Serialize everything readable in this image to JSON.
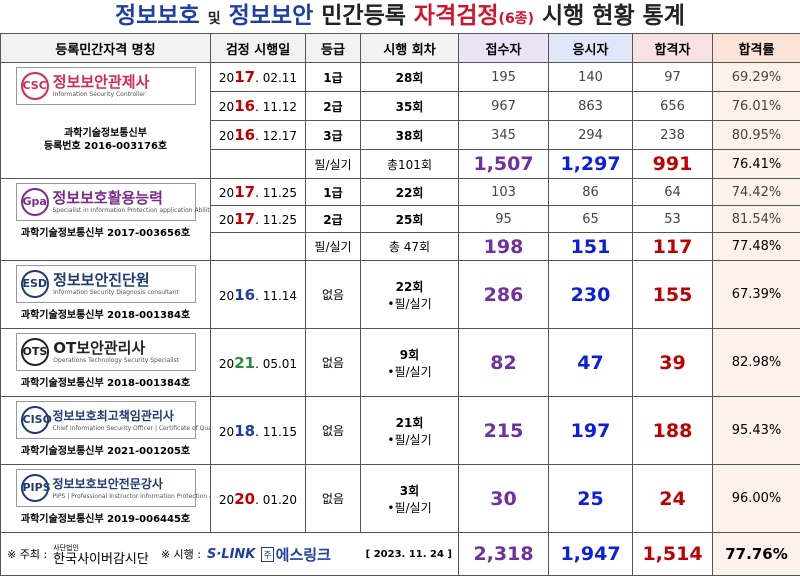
{
  "title": {
    "p1": "정보보호",
    "p2": "및",
    "p3": "정보보안",
    "p4": "민간등록",
    "p5": "자격검정",
    "p6": "(6종)",
    "p7": "시행 현황 통계"
  },
  "header": [
    "등록민간자격 명칭",
    "검정 시행일",
    "등급",
    "시행 회차",
    "접수자",
    "응시자",
    "합격자",
    "합격률"
  ],
  "groups": [
    {
      "icon": "CSC",
      "logo": "정보보안관제사",
      "logo_sub": "Information Security Controller",
      "logo_color": "#d6285a",
      "org": "과학기술정보통신부",
      "reg": "등록번호 2016-003176호",
      "rows": [
        {
          "date": {
            "pre": "20",
            "yy": "17",
            "rest": ". 02.11"
          },
          "grade": "1급",
          "round": "28회",
          "apply": "195",
          "take": "140",
          "pass": "97",
          "rate": "69.29%"
        },
        {
          "date": {
            "pre": "20",
            "yy": "16",
            "rest": ". 11.12"
          },
          "grade": "2급",
          "round": "35회",
          "apply": "967",
          "take": "863",
          "pass": "656",
          "rate": "76.01%"
        },
        {
          "date": {
            "pre": "20",
            "yy": "16",
            "rest": ". 12.17"
          },
          "grade": "3급",
          "round": "38회",
          "apply": "345",
          "take": "294",
          "pass": "238",
          "rate": "80.95%"
        }
      ],
      "total": {
        "grade": "필/실기",
        "round": "총101회",
        "apply": "1,507",
        "take": "1,297",
        "pass": "991",
        "rate": "76.41%"
      }
    },
    {
      "icon": "Gpa",
      "logo": "정보보호활용능력",
      "logo_sub": "Specialist in Information Protection application Ability",
      "logo_color": "#7a2a8c",
      "reg": "과학기술정보통신부 2017-003656호",
      "rows": [
        {
          "date": {
            "pre": "20",
            "yy": "17",
            "rest": ". 11.25"
          },
          "grade": "1급",
          "round": "22회",
          "apply": "103",
          "take": "86",
          "pass": "64",
          "rate": "74.42%"
        },
        {
          "date": {
            "pre": "20",
            "yy": "17",
            "rest": ". 11.25"
          },
          "grade": "2급",
          "round": "25회",
          "apply": "95",
          "take": "65",
          "pass": "53",
          "rate": "81.54%"
        }
      ],
      "total": {
        "grade": "필/실기",
        "round": "총 47회",
        "apply": "198",
        "take": "151",
        "pass": "117",
        "rate": "77.48%"
      }
    },
    {
      "icon": "ESD",
      "logo": "정보보안진단원",
      "logo_sub": "Information Security Diagnosis consultant",
      "logo_color": "#1f3a75",
      "reg": "과학기술정보통신부 2018-001384호",
      "single": {
        "date": {
          "pre": "20",
          "yy": "16",
          "rest": ". 11.14"
        },
        "grade": "없음",
        "round": "22회",
        "kind": "•필/실기",
        "apply": "286",
        "take": "230",
        "pass": "155",
        "rate": "67.39%"
      }
    },
    {
      "icon": "OTS",
      "logo": "OT보안관리사",
      "logo_sub": "Operations Technology Security Specialist",
      "logo_color": "#222222",
      "reg": "과학기술정보통신부 2018-001384호",
      "single": {
        "date": {
          "pre": "20",
          "yy": "21",
          "rest": ". 05.01"
        },
        "grade": "없음",
        "round": "9회",
        "kind": "•필/실기",
        "apply": "82",
        "take": "47",
        "pass": "39",
        "rate": "82.98%"
      }
    },
    {
      "icon": "CISO",
      "logo": "정보보호최고책임관리사",
      "logo_sub": "Chief Information Security Officer | Certificate of Qualification",
      "logo_color": "#1f3a75",
      "reg": "과학기술정보통신부 2021-001205호",
      "single": {
        "date": {
          "pre": "20",
          "yy": "18",
          "rest": ". 11.15"
        },
        "grade": "없음",
        "round": "21회",
        "kind": "•필/실기",
        "apply": "215",
        "take": "197",
        "pass": "188",
        "rate": "95.43%"
      }
    },
    {
      "icon": "PIPS",
      "logo": "정보보호보안전문강사",
      "logo_sub": "PIPS | Professional Instructor Information Protection and Security",
      "logo_color": "#1f3a75",
      "reg": "과학기술정보통신부 2019-006445호",
      "single": {
        "date": {
          "pre": "20",
          "yy": "20",
          "rest": ". 01.20"
        },
        "grade": "없음",
        "round": "3회",
        "kind": "•필/실기",
        "apply": "30",
        "take": "25",
        "pass": "24",
        "rate": "96.00%"
      }
    }
  ],
  "footer": {
    "host_label": "※ 주최 :",
    "host_pre": "사단법인",
    "host": "한국사이버감시단",
    "run_label": "※ 시행 :",
    "run_logo": "S·LINK",
    "run_co": "주",
    "run": "에스링크",
    "date": "[ 2023. 11. 24 ]",
    "apply": "2,318",
    "take": "1,947",
    "pass": "1,514",
    "rate": "77.76%"
  }
}
